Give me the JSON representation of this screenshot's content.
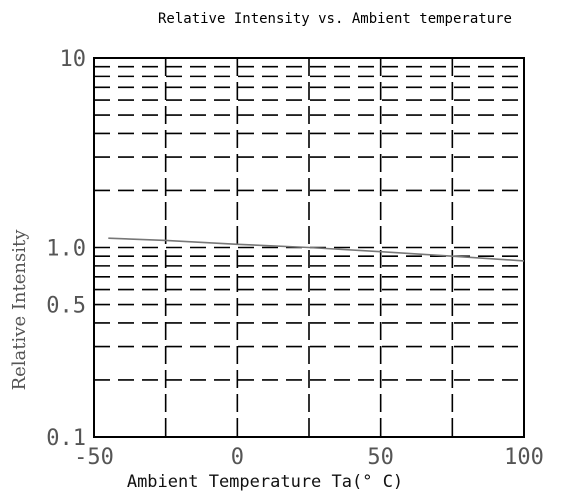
{
  "chart_data": {
    "type": "line",
    "title": "Relative Intensity vs. Ambient temperature",
    "xlabel": "Ambient Temperature Ta(° C)",
    "ylabel": "Relative Intensity",
    "x_scale": "linear",
    "y_scale": "log",
    "xlim": [
      -50,
      100
    ],
    "ylim": [
      0.1,
      10
    ],
    "x_ticks": [
      {
        "value": -50,
        "label": "-50"
      },
      {
        "value": 0,
        "label": "0"
      },
      {
        "value": 50,
        "label": "50"
      },
      {
        "value": 100,
        "label": "100"
      }
    ],
    "y_ticks": [
      {
        "value": 0.1,
        "label": "0.1"
      },
      {
        "value": 0.5,
        "label": "0.5"
      },
      {
        "value": 1.0,
        "label": "1.0"
      },
      {
        "value": 10,
        "label": "10"
      }
    ],
    "grid": true,
    "grid_style": "dashed",
    "series": [
      {
        "x": [
          -45,
          -25,
          0,
          25,
          50,
          75,
          100
        ],
        "y": [
          1.12,
          1.09,
          1.04,
          1.0,
          0.95,
          0.9,
          0.85
        ],
        "color": "#777777"
      }
    ]
  }
}
